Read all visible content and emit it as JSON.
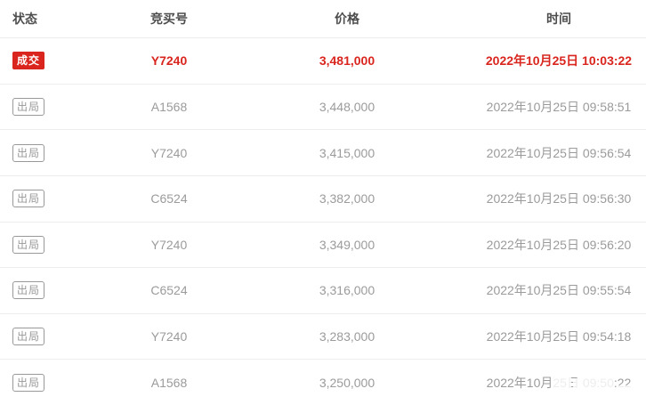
{
  "table": {
    "columns": [
      {
        "label": "状态"
      },
      {
        "label": "竞买号"
      },
      {
        "label": "价格"
      },
      {
        "label": "时间"
      }
    ],
    "rows": [
      {
        "status": "成交",
        "result": "deal",
        "bidder": "Y7240",
        "price": "3,481,000",
        "time": "2022年10月25日 10:03:22"
      },
      {
        "status": "出局",
        "result": "out",
        "bidder": "A1568",
        "price": "3,448,000",
        "time": "2022年10月25日 09:58:51"
      },
      {
        "status": "出局",
        "result": "out",
        "bidder": "Y7240",
        "price": "3,415,000",
        "time": "2022年10月25日 09:56:54"
      },
      {
        "status": "出局",
        "result": "out",
        "bidder": "C6524",
        "price": "3,382,000",
        "time": "2022年10月25日 09:56:30"
      },
      {
        "status": "出局",
        "result": "out",
        "bidder": "Y7240",
        "price": "3,349,000",
        "time": "2022年10月25日 09:56:20"
      },
      {
        "status": "出局",
        "result": "out",
        "bidder": "C6524",
        "price": "3,316,000",
        "time": "2022年10月25日 09:55:54"
      },
      {
        "status": "出局",
        "result": "out",
        "bidder": "Y7240",
        "price": "3,283,000",
        "time": "2022年10月25日 09:54:18"
      },
      {
        "status": "出局",
        "result": "out",
        "bidder": "A1568",
        "price": "3,250,000",
        "time": "2022年10月25日 09:50:22"
      }
    ],
    "colors": {
      "deal_red": "#d9251d",
      "out_gray": "#999999",
      "header_text": "#4d4d4d",
      "row_text": "#9b9b9b",
      "divider": "#ededed"
    }
  }
}
